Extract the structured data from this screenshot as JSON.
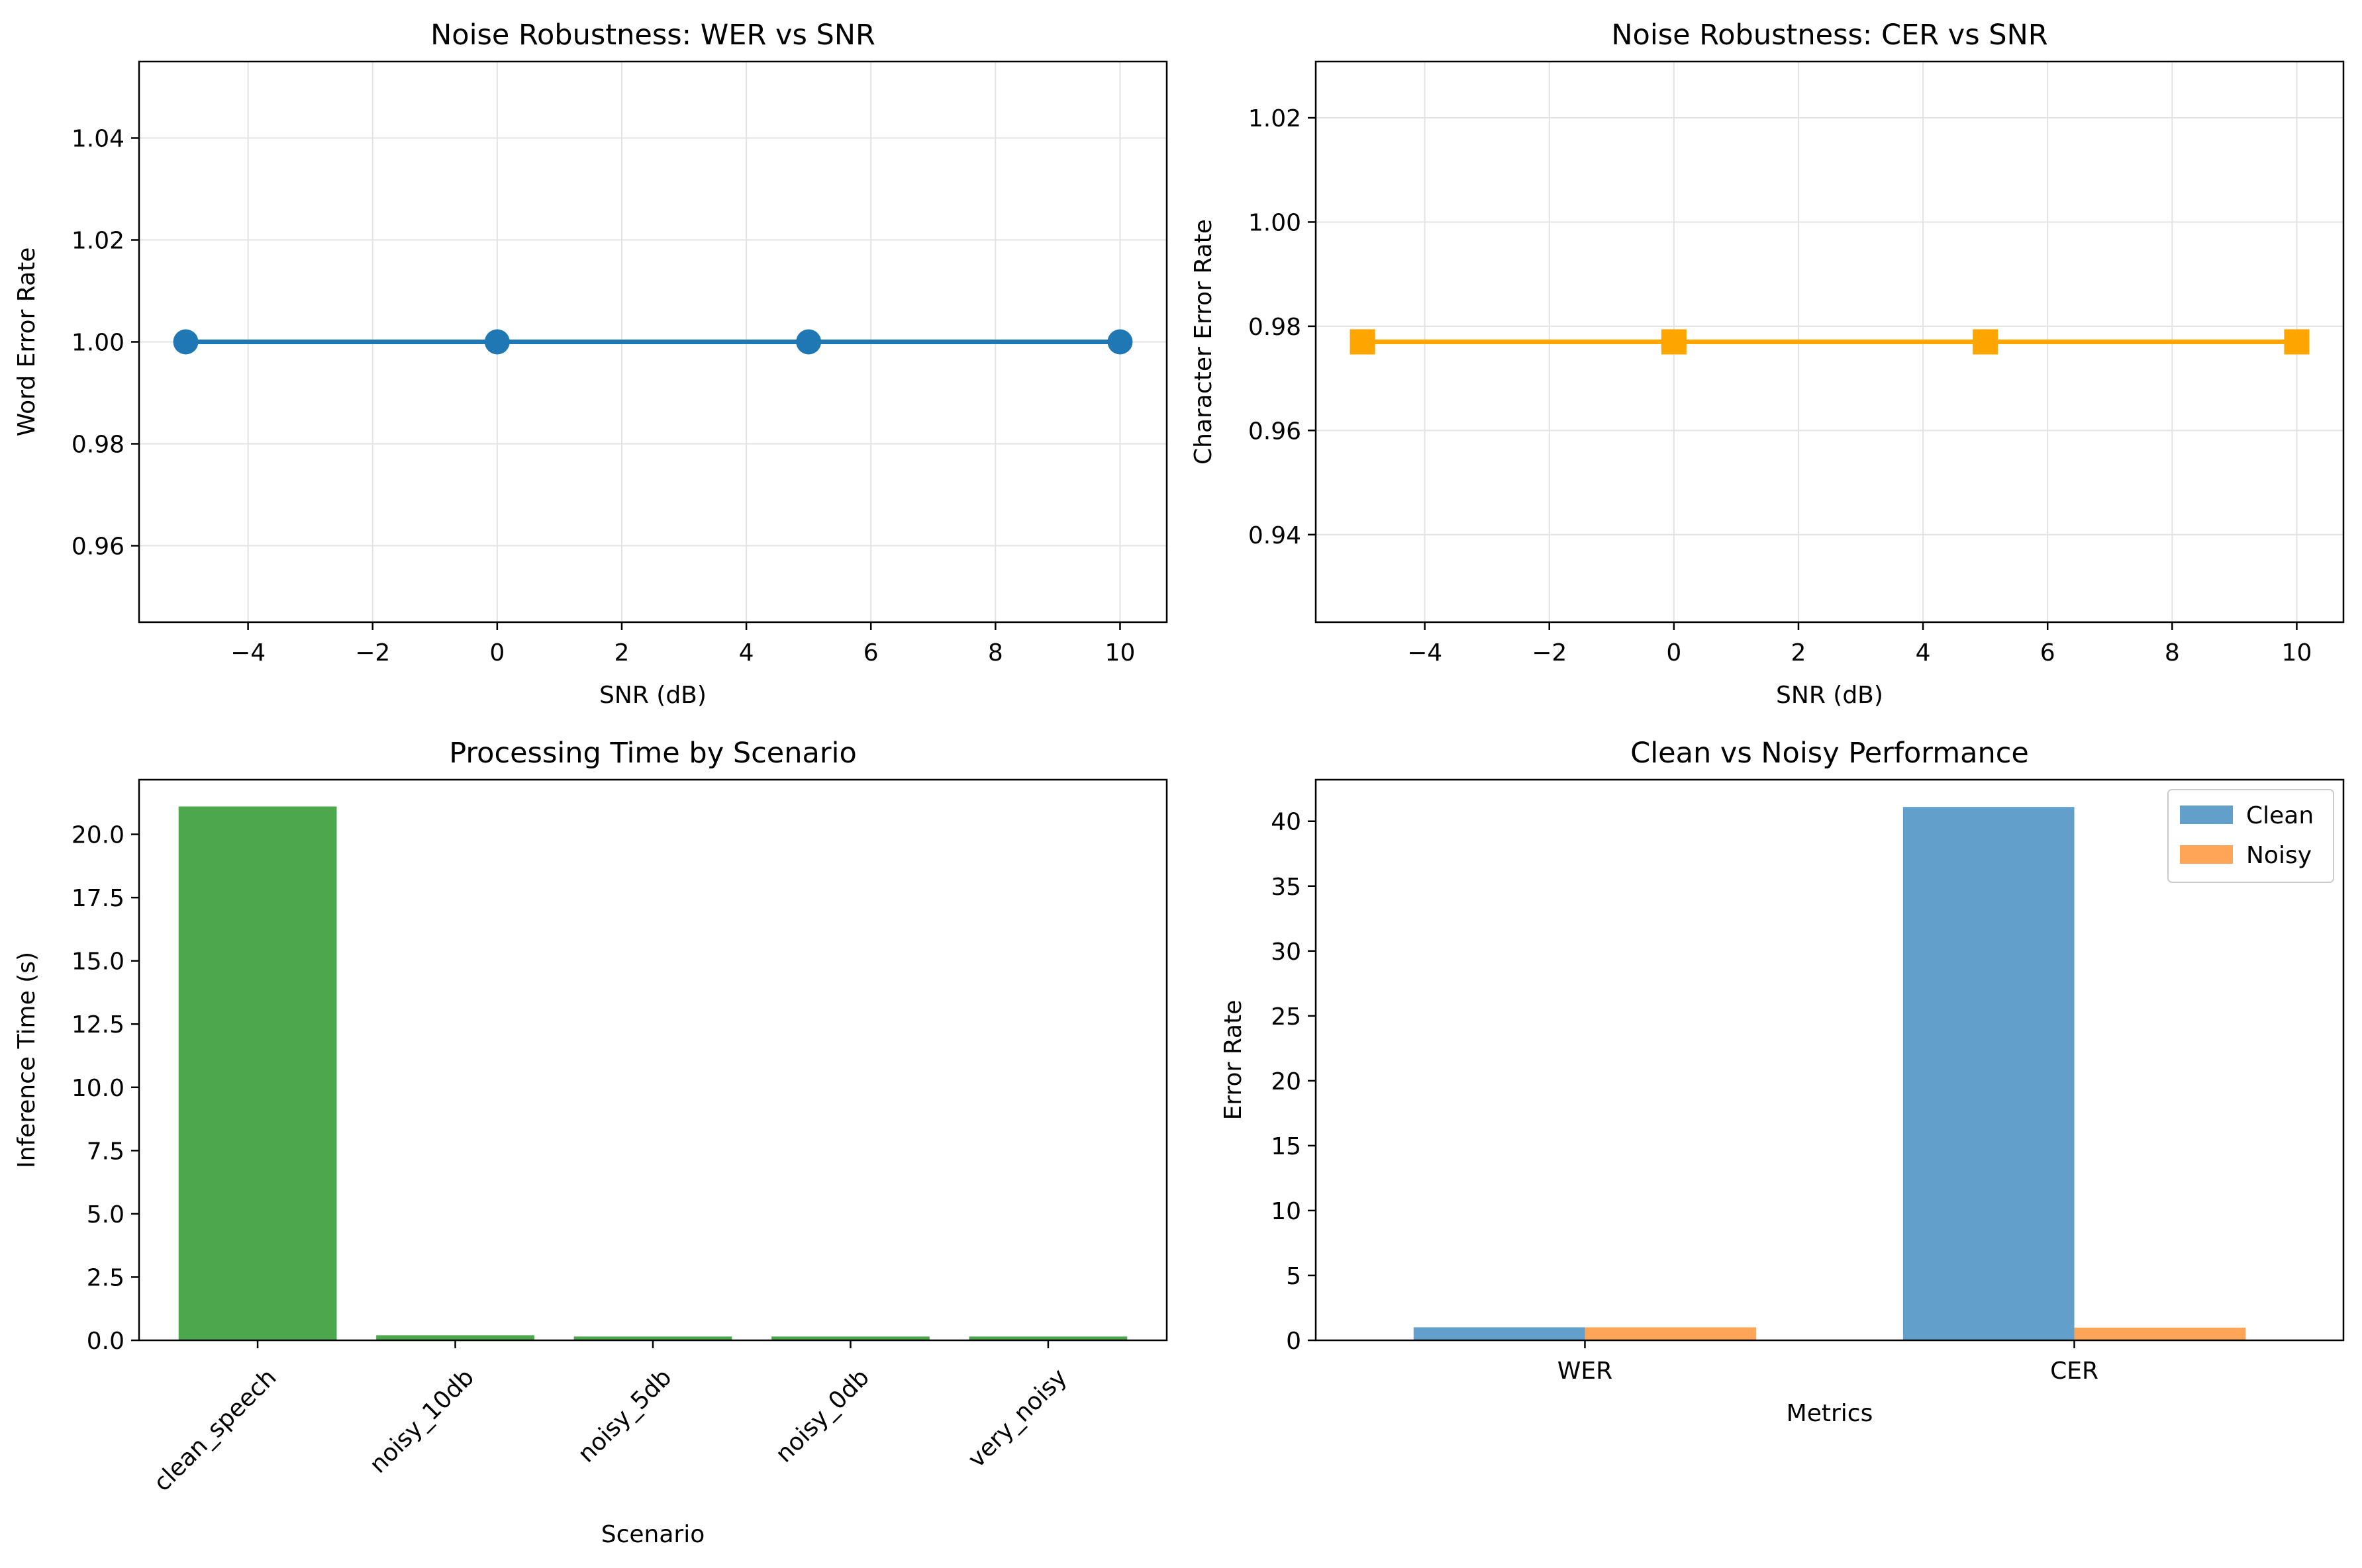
{
  "chart_data": [
    {
      "type": "line",
      "title": "Noise Robustness: WER vs SNR",
      "xlabel": "SNR (dB)",
      "ylabel": "Word Error Rate",
      "x": [
        -5,
        0,
        5,
        10
      ],
      "series": [
        {
          "values": [
            1.0,
            1.0,
            1.0,
            1.0
          ],
          "color": "#1f77b4",
          "marker": "circle"
        }
      ],
      "xlim": [
        -5.75,
        10.75
      ],
      "ylim": [
        0.945,
        1.055
      ],
      "xticks": [
        -4,
        -2,
        0,
        2,
        4,
        6,
        8,
        10
      ],
      "xtick_labels": [
        "−4",
        "−2",
        "0",
        "2",
        "4",
        "6",
        "8",
        "10"
      ],
      "yticks": [
        0.96,
        0.98,
        1.0,
        1.02,
        1.04
      ],
      "ytick_labels": [
        "0.96",
        "0.98",
        "1.00",
        "1.02",
        "1.04"
      ],
      "grid": true
    },
    {
      "type": "line",
      "title": "Noise Robustness: CER vs SNR",
      "xlabel": "SNR (dB)",
      "ylabel": "Character Error Rate",
      "x": [
        -5,
        0,
        5,
        10
      ],
      "series": [
        {
          "values": [
            0.977,
            0.977,
            0.977,
            0.977
          ],
          "color": "#ffa500",
          "marker": "square"
        }
      ],
      "xlim": [
        -5.75,
        10.75
      ],
      "ylim": [
        0.9232,
        1.0308
      ],
      "xticks": [
        -4,
        -2,
        0,
        2,
        4,
        6,
        8,
        10
      ],
      "xtick_labels": [
        "−4",
        "−2",
        "0",
        "2",
        "4",
        "6",
        "8",
        "10"
      ],
      "yticks": [
        0.94,
        0.96,
        0.98,
        1.0,
        1.02
      ],
      "ytick_labels": [
        "0.94",
        "0.96",
        "0.98",
        "1.00",
        "1.02"
      ],
      "grid": true
    },
    {
      "type": "bar",
      "title": "Processing Time by Scenario",
      "xlabel": "Scenario",
      "ylabel": "Inference Time (s)",
      "categories": [
        "clean_speech",
        "noisy_10db",
        "noisy_5db",
        "noisy_0db",
        "very_noisy"
      ],
      "values": [
        21.1,
        0.2,
        0.15,
        0.15,
        0.15
      ],
      "color": "#4da74d",
      "ylim": [
        0,
        22.16
      ],
      "yticks": [
        0,
        2.5,
        5,
        7.5,
        10,
        12.5,
        15,
        17.5,
        20
      ],
      "ytick_labels": [
        "0.0",
        "2.5",
        "5.0",
        "7.5",
        "10.0",
        "12.5",
        "15.0",
        "17.5",
        "20.0"
      ],
      "grid": false
    },
    {
      "type": "bar",
      "title": "Clean vs Noisy Performance",
      "xlabel": "Metrics",
      "ylabel": "Error Rate",
      "categories": [
        "WER",
        "CER"
      ],
      "series": [
        {
          "name": "Clean",
          "values": [
            1.0,
            41.1
          ],
          "color": "#62a0cb"
        },
        {
          "name": "Noisy",
          "values": [
            1.0,
            0.98
          ],
          "color": "#ffa557"
        }
      ],
      "ylim": [
        0,
        43.2
      ],
      "yticks": [
        0,
        5,
        10,
        15,
        20,
        25,
        30,
        35,
        40
      ],
      "ytick_labels": [
        "0",
        "5",
        "10",
        "15",
        "20",
        "25",
        "30",
        "35",
        "40"
      ],
      "legend": "top-right",
      "grid": false
    }
  ]
}
